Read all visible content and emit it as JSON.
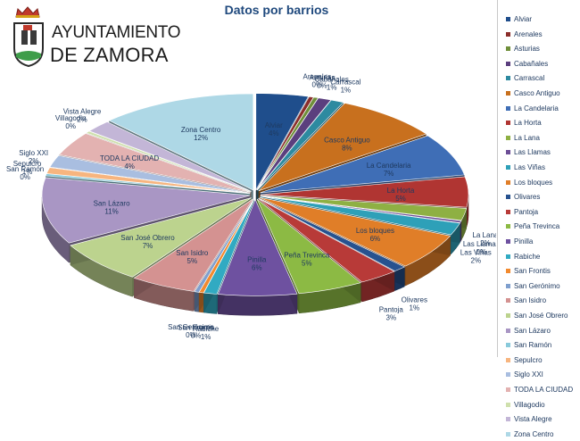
{
  "logo": {
    "line1": "AYUNTAMIENTO",
    "line2": "DE ZAMORA"
  },
  "chart_data": {
    "type": "pie",
    "title": "Datos por barrios",
    "slices": [
      {
        "name": "Alviar",
        "value": 4,
        "color": "#1f4e8c"
      },
      {
        "name": "Arenales",
        "value": 0,
        "color": "#8b2e2b"
      },
      {
        "name": "Asturias",
        "value": 0,
        "color": "#6f8f3a"
      },
      {
        "name": "Cabañales",
        "value": 1,
        "color": "#5b3f7e"
      },
      {
        "name": "Carrascal",
        "value": 1,
        "color": "#2d8aa0"
      },
      {
        "name": "Casco Antiguo",
        "value": 8,
        "color": "#c8701e"
      },
      {
        "name": "La Candelaria",
        "value": 7,
        "color": "#3f6eb6"
      },
      {
        "name": "La Horta",
        "value": 5,
        "color": "#b03532"
      },
      {
        "name": "La Lana",
        "value": 2,
        "color": "#8eb043"
      },
      {
        "name": "Las Llamas",
        "value": 0,
        "color": "#6c4e96"
      },
      {
        "name": "Las Viñas",
        "value": 2,
        "color": "#2ea0b8"
      },
      {
        "name": "Los bloques",
        "value": 6,
        "color": "#e07e28"
      },
      {
        "name": "Olivares",
        "value": 1,
        "color": "#27528f"
      },
      {
        "name": "Pantoja",
        "value": 3,
        "color": "#b83a38"
      },
      {
        "name": "Peña Trevinca",
        "value": 5,
        "color": "#8cba44"
      },
      {
        "name": "Pinilla",
        "value": 6,
        "color": "#6e51a0"
      },
      {
        "name": "Rabiche",
        "value": 1,
        "color": "#31aac2"
      },
      {
        "name": "San Frontis",
        "value": 0,
        "color": "#f28a2e"
      },
      {
        "name": "San Gerónimo",
        "value": 0,
        "color": "#7f9fce"
      },
      {
        "name": "San Isidro",
        "value": 5,
        "color": "#d49291"
      },
      {
        "name": "San José Obrero",
        "value": 7,
        "color": "#bcd38e"
      },
      {
        "name": "San Lázaro",
        "value": 11,
        "color": "#a996c4"
      },
      {
        "name": "San Ramón",
        "value": 0,
        "color": "#89cadb"
      },
      {
        "name": "Sepulcro",
        "value": 1,
        "color": "#f7b57f"
      },
      {
        "name": "Siglo XXI",
        "value": 2,
        "color": "#a9bee0"
      },
      {
        "name": "TODA LA CIUDAD",
        "value": 4,
        "color": "#e3b2b1"
      },
      {
        "name": "Villagodio",
        "value": 0,
        "color": "#cfe0ad"
      },
      {
        "name": "Vista Alegre",
        "value": 2,
        "color": "#c3b6d7"
      },
      {
        "name": "Zona Centro",
        "value": 12,
        "color": "#aed8e6"
      }
    ],
    "legend_position": "right"
  }
}
